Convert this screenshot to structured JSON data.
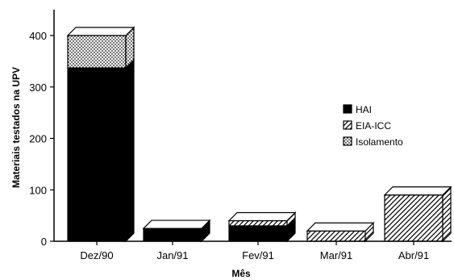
{
  "chart_data": {
    "type": "bar",
    "stacked": true,
    "three_d": true,
    "categories": [
      "Dez/90",
      "Jan/91",
      "Fev/91",
      "Mar/91",
      "Abr/91"
    ],
    "series": [
      {
        "name": "HAI",
        "pattern": "solid",
        "values": [
          337,
          25,
          30,
          0,
          0
        ]
      },
      {
        "name": "EIA-ICC",
        "pattern": "diagonal-hatch",
        "values": [
          0,
          0,
          10,
          20,
          90
        ]
      },
      {
        "name": "Isolamento",
        "pattern": "dots",
        "values": [
          63,
          0,
          0,
          0,
          0
        ]
      }
    ],
    "xlabel": "Mês",
    "ylabel": "Materiais testados na UPV",
    "ylim": [
      0,
      450
    ],
    "yticks": [
      0,
      100,
      200,
      300,
      400
    ],
    "grid": false,
    "legend_position": "right"
  },
  "colors": {
    "ink": "#000000",
    "background": "#ffffff"
  }
}
